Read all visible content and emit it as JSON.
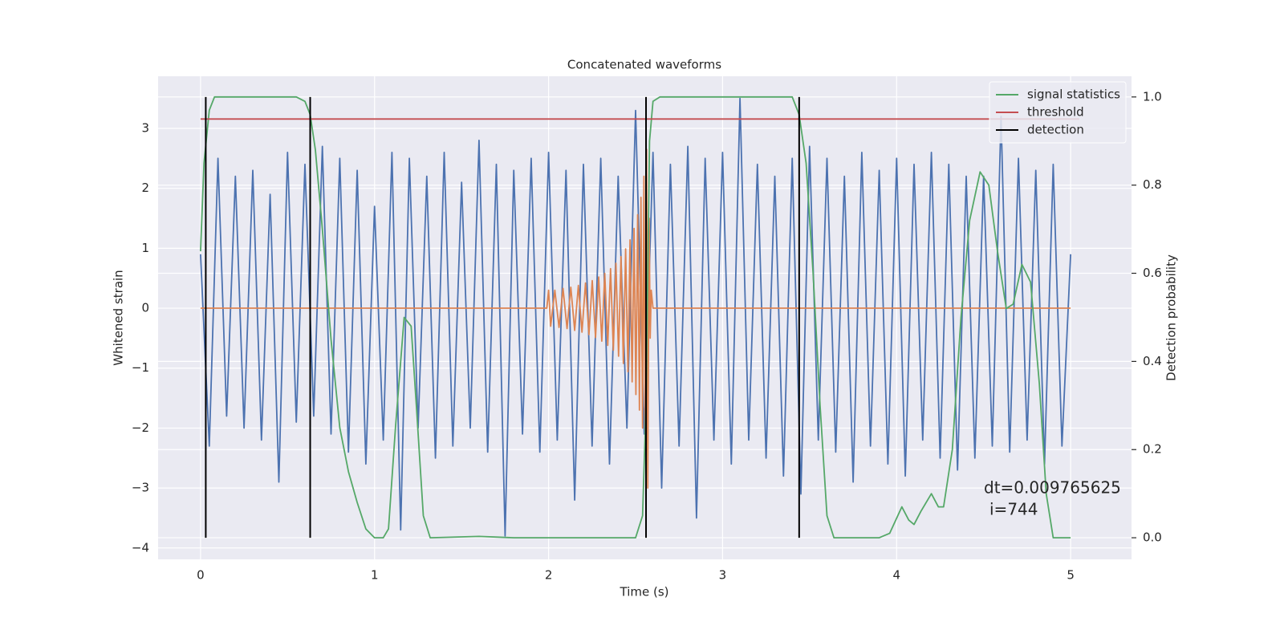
{
  "chart_data": {
    "type": "line",
    "title": "Concatenated waveforms",
    "xlabel": "Time (s)",
    "ylabel": "Whitened strain",
    "y2label": "Detection probability",
    "xlim": [
      -0.244,
      5.35
    ],
    "ylim": [
      -4.19,
      3.87
    ],
    "y2lim": [
      -0.049,
      1.047
    ],
    "xticks": [
      0,
      1,
      2,
      3,
      4,
      5
    ],
    "yticks": [
      {
        "value": -4,
        "label": "−4"
      },
      {
        "value": -3,
        "label": "−3"
      },
      {
        "value": -2,
        "label": "−2"
      },
      {
        "value": -1,
        "label": "−1"
      },
      0,
      1,
      2,
      3
    ],
    "y2ticks": [
      {
        "value": 0,
        "label": "0.0"
      },
      {
        "value": 0.2,
        "label": "0.2"
      },
      {
        "value": 0.4,
        "label": "0.4"
      },
      {
        "value": 0.6,
        "label": "0.6"
      },
      {
        "value": 0.8,
        "label": "0.8"
      },
      {
        "value": 1,
        "label": "1.0"
      }
    ],
    "grid": true,
    "legend": "upper right",
    "annotation": [
      "dt=0.009765625",
      "i=744"
    ],
    "series": [
      {
        "color": "#4c72b0",
        "x": [
          0,
          0.05,
          0.1,
          0.15,
          0.2,
          0.25,
          0.3,
          0.35,
          0.4,
          0.45,
          0.5,
          0.55,
          0.6,
          0.65,
          0.7,
          0.75,
          0.8,
          0.85,
          0.9,
          0.95,
          1,
          1.05,
          1.1,
          1.15,
          1.2,
          1.25,
          1.3,
          1.35,
          1.4,
          1.45,
          1.5,
          1.55,
          1.6,
          1.65,
          1.7,
          1.75,
          1.8,
          1.85,
          1.9,
          1.95,
          2,
          2.05,
          2.1,
          2.15,
          2.2,
          2.25,
          2.3,
          2.35,
          2.4,
          2.45,
          2.5,
          2.55,
          2.6,
          2.65,
          2.7,
          2.75,
          2.8,
          2.85,
          2.9,
          2.95,
          3,
          3.05,
          3.1,
          3.15,
          3.2,
          3.25,
          3.3,
          3.35,
          3.4,
          3.45,
          3.5,
          3.55,
          3.6,
          3.65,
          3.7,
          3.75,
          3.8,
          3.85,
          3.9,
          3.95,
          4,
          4.05,
          4.1,
          4.15,
          4.2,
          4.25,
          4.3,
          4.35,
          4.4,
          4.45,
          4.5,
          4.55,
          4.6,
          4.65,
          4.7,
          4.75,
          4.8,
          4.85,
          4.9,
          4.95,
          5
        ],
        "values": [
          0.9,
          -2.3,
          2.5,
          -1.8,
          2.2,
          -2.0,
          2.3,
          -2.2,
          1.9,
          -2.9,
          2.6,
          -1.9,
          2.4,
          -1.8,
          2.7,
          -2.1,
          2.5,
          -2.4,
          2.3,
          -2.6,
          1.7,
          -2.2,
          2.6,
          -3.7,
          2.5,
          -2.0,
          2.2,
          -2.5,
          2.6,
          -2.3,
          2.1,
          -2.0,
          2.8,
          -2.4,
          2.4,
          -3.8,
          2.3,
          -2.1,
          2.5,
          -2.4,
          2.6,
          -2.2,
          2.3,
          -3.2,
          2.4,
          -2.3,
          2.5,
          -2.6,
          2.2,
          -2.0,
          3.3,
          -2.1,
          2.6,
          -3.0,
          2.4,
          -2.3,
          2.7,
          -3.5,
          2.5,
          -2.2,
          2.6,
          -2.6,
          3.5,
          -2.2,
          2.4,
          -2.5,
          2.2,
          -2.8,
          2.5,
          -3.1,
          2.7,
          -2.2,
          2.5,
          -2.4,
          2.2,
          -2.9,
          2.6,
          -2.3,
          2.3,
          -2.6,
          2.5,
          -2.8,
          2.4,
          -2.2,
          2.6,
          -2.5,
          2.4,
          -2.7,
          2.2,
          -2.5,
          2.2,
          -2.3,
          3.2,
          -2.4,
          2.5,
          -2.2,
          2.3,
          -2.6,
          2.4,
          -2.3,
          0.9
        ]
      },
      {
        "color": "#dd8452",
        "x": [
          0,
          1.99,
          2.0,
          2.012,
          2.036,
          2.06,
          2.083,
          2.106,
          2.128,
          2.15,
          2.171,
          2.192,
          2.212,
          2.232,
          2.251,
          2.27,
          2.288,
          2.306,
          2.323,
          2.34,
          2.356,
          2.372,
          2.387,
          2.402,
          2.416,
          2.43,
          2.443,
          2.456,
          2.468,
          2.48,
          2.491,
          2.502,
          2.512,
          2.522,
          2.531,
          2.54,
          2.548,
          2.556,
          2.563,
          2.57,
          2.578,
          2.584,
          2.59,
          2.6,
          5
        ],
        "values": [
          0,
          0,
          0.3,
          -0.3,
          0.3,
          -0.32,
          0.33,
          -0.34,
          0.35,
          -0.37,
          0.38,
          -0.4,
          0.42,
          -0.44,
          0.46,
          -0.49,
          0.52,
          -0.55,
          0.58,
          -0.62,
          0.66,
          -0.7,
          0.75,
          -0.8,
          0.86,
          -0.92,
          0.99,
          -1.06,
          1.14,
          -1.23,
          1.33,
          -1.44,
          1.56,
          -1.7,
          1.85,
          -2.0,
          2.2,
          -2.4,
          2.65,
          -3.0,
          1.5,
          -0.5,
          0.3,
          0,
          0
        ]
      },
      {
        "name": "signal statistics",
        "color": "#55a868",
        "axis": "y2",
        "x": [
          0,
          0.02,
          0.05,
          0.08,
          0.55,
          0.6,
          0.63,
          0.66,
          0.7,
          0.75,
          0.8,
          0.85,
          0.9,
          0.95,
          1.0,
          1.05,
          1.08,
          1.12,
          1.17,
          1.21,
          1.24,
          1.28,
          1.32,
          1.6,
          1.8,
          2.5,
          2.54,
          2.56,
          2.58,
          2.6,
          2.64,
          3.4,
          3.44,
          3.48,
          3.52,
          3.56,
          3.6,
          3.64,
          3.9,
          3.96,
          4.03,
          4.07,
          4.1,
          4.14,
          4.2,
          4.24,
          4.27,
          4.32,
          4.37,
          4.42,
          4.48,
          4.53,
          4.58,
          4.63,
          4.67,
          4.72,
          4.77,
          4.82,
          4.86,
          4.9,
          5.0
        ],
        "values": [
          0.65,
          0.85,
          0.97,
          1.0,
          1.0,
          0.99,
          0.96,
          0.88,
          0.7,
          0.45,
          0.25,
          0.15,
          0.08,
          0.02,
          0.0,
          0.0,
          0.02,
          0.25,
          0.5,
          0.48,
          0.3,
          0.05,
          0.0,
          0.003,
          0.0,
          0.0,
          0.05,
          0.3,
          0.9,
          0.99,
          1.0,
          1.0,
          0.96,
          0.85,
          0.6,
          0.3,
          0.05,
          0.0,
          0.0,
          0.01,
          0.07,
          0.04,
          0.03,
          0.06,
          0.1,
          0.07,
          0.07,
          0.2,
          0.5,
          0.72,
          0.83,
          0.8,
          0.65,
          0.52,
          0.53,
          0.62,
          0.58,
          0.35,
          0.1,
          0.0,
          0.0
        ]
      },
      {
        "name": "threshold",
        "color": "#c44e52",
        "axis": "y2",
        "x": [
          0,
          5.05
        ],
        "values": [
          0.95,
          0.95
        ]
      },
      {
        "name": "detection",
        "color": "#000000",
        "axis": "y2",
        "x": [
          0.03,
          0.63,
          2.56,
          3.44
        ],
        "span": [
          0,
          1
        ]
      }
    ]
  }
}
